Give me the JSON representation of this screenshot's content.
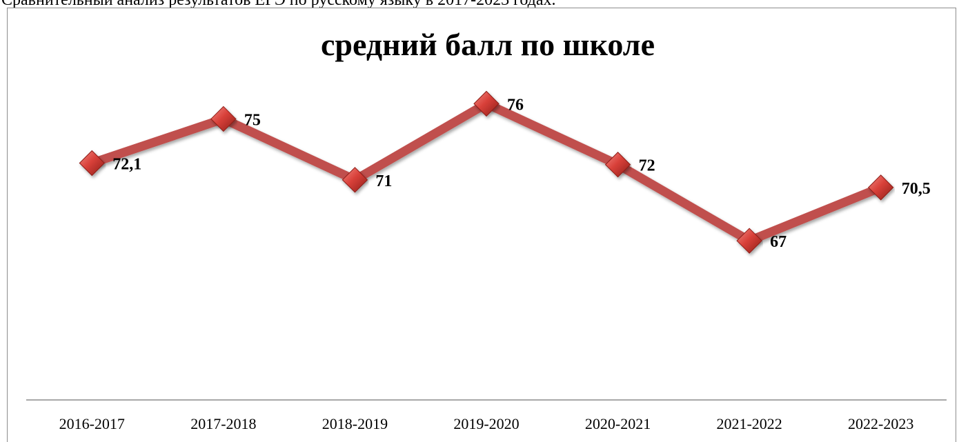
{
  "document": {
    "caption": "Сравнительный анализ результатов ЕГЭ по русскому языку в 2017-2023 годах."
  },
  "chart_data": {
    "type": "line",
    "title": "средний балл по школе",
    "xlabel": "",
    "ylabel": "",
    "categories": [
      "2016-2017",
      "2017-2018",
      "2018-2019",
      "2019-2020",
      "2020-2021",
      "2021-2022",
      "2022-2023"
    ],
    "series": [
      {
        "values": [
          72.1,
          75,
          71,
          76,
          72,
          67,
          70.5
        ],
        "labels": [
          "72,1",
          "75",
          "71",
          "76",
          "72",
          "67",
          "70,5"
        ],
        "color": "#c0504d",
        "marker": "diamond"
      }
    ],
    "ylim": [
      58,
      80
    ],
    "grid": false,
    "legend": "none",
    "axis_color": "#8c8c8c"
  }
}
